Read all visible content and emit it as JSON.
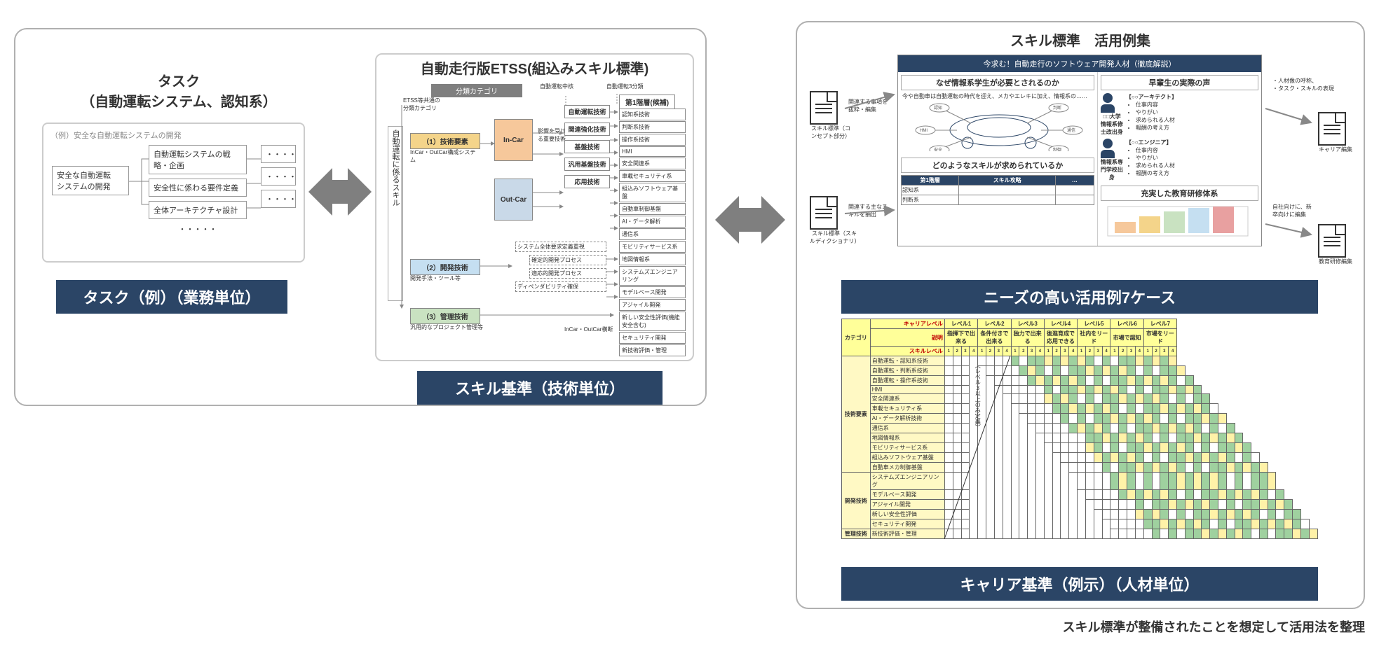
{
  "colors": {
    "banner_bg": "#2b4566",
    "banner_fg": "#ffffff",
    "panel_border": "#b0b0b0",
    "arrow": "#7f7f7f",
    "cat_yellow": "#f4d48a",
    "cat_blue": "#c5dff1",
    "cat_green": "#c9e2c1",
    "incar": "#f6c89b",
    "outcar": "#c9d9e8",
    "matrix_header": "#ffff99",
    "matrix_green": "#9fd19f",
    "matrix_yellow": "#fff2a8",
    "red_text": "#c00000"
  },
  "left": {
    "task_heading_line1": "タスク",
    "task_heading_line2": "（自動運転システム、認知系）",
    "example_label": "（例）安全な自動運転システムの開発",
    "root_box_line1": "安全な自動運転",
    "root_box_line2": "システムの開発",
    "child_boxes": [
      "自動運転システムの戦略・企画",
      "安全性に係わる要件定義",
      "全体アーキテクチャ設計",
      "・・・・・"
    ],
    "dots": "・・・・",
    "banner": "タスク（例）（業務単位）"
  },
  "center": {
    "heading": "自動走行版ETSS(組込みスキル標準)",
    "col_category": "分類カテゴリ",
    "col_tier1": "第1階層(候補)",
    "etss_note": "ETSS等共通の分類カテゴリ",
    "vert_label": "自動運転に係るスキル",
    "cats": {
      "c1": "（1）技術要素",
      "c1_sub": "InCar・OutCar構成システム",
      "c2": "（2）開発技術",
      "c2_sub": "開発手法・ツール等",
      "c3": "（3）管理技術",
      "c3_sub": "汎用的なプロジェクト管理等"
    },
    "incar": "In-Car",
    "outcar": "Out-Car",
    "center_note": "自動運転中核",
    "center_boxes": [
      "自動運転技術",
      "関連強化技術",
      "基盤技術",
      "汎用基盤技術",
      "応用技術"
    ],
    "impact_note": "影響を受ける重要技術",
    "three_note": "自動運転3分類",
    "dev_boxes": [
      "システム全体要求定義重視",
      "確定的開発プロセス",
      "適応的開発プロセス",
      "ディペンダビリティ確保"
    ],
    "tier1_items": [
      "認知系技術",
      "判断系技術",
      "操作系技術",
      "HMI",
      "安全関連系",
      "車載セキュリティ系",
      "組込みソフトウェア基盤",
      "自動車制御基盤",
      "AI・データ解析",
      "通信系",
      "モビリティサービス系",
      "地図情報系",
      "システムズエンジニアリング",
      "モデルベース開発",
      "アジャイル開発",
      "新しい安全性評価(機能安全含む)",
      "セキュリティ開発",
      "新技術評価・管理"
    ],
    "footer_note": "InCar・OutCar横断",
    "banner": "スキル基準（技術単位）"
  },
  "right": {
    "heading": "スキル標準　活用例集",
    "doc_title": "今求む！自動走行のソフトウェア開発人材（徹底解説）",
    "sec_a": "なぜ情報系学生が必要とされるのか",
    "sec_a_body": "今や自動車は自動運転の時代を迎え、メカやエレキに加え、情報系の……",
    "sec_b": "早輩生の実際の声",
    "sec_c": "どのようなスキルが求められているか",
    "sec_d": "充実した教育研修体系",
    "role1": "【○○アーキテクト】",
    "role2": "【○○エンジニア】",
    "role_bullets": [
      "仕事内容",
      "やりがい",
      "求められる人材",
      "報酬の考え方"
    ],
    "school1": "□□大学 情報系修士改出身",
    "school2": "情報系専門学校出身",
    "sec_c_table_head": [
      "第1階層",
      "スキル攻略",
      "…"
    ],
    "sec_c_rows": [
      "認知系",
      "判断系"
    ],
    "sec_c_note": "関連する主なスキルを抽出",
    "left_doc1_label": "スキル標準（コンセプト部分）",
    "left_doc1_arrow": "関連する事項を抜粋・編集",
    "left_doc2_label": "スキル標準（スキルディクショナリ）",
    "right_note1a": "人材像の呼称、",
    "right_note1b": "タスク・スキルの表現",
    "right_doc1_label": "キャリア編集",
    "right_note2a": "自社向けに、新",
    "right_note2b": "卒向けに編集",
    "right_doc2_label": "教育研修編集",
    "banner1": "ニーズの高い活用例7ケース",
    "matrix": {
      "corner": "カテゴリ",
      "career_label": "キャリアレベル",
      "desc_label": "説明",
      "skill_label": "スキルレベル",
      "levels": [
        "レベル1",
        "レベル2",
        "レベル3",
        "レベル4",
        "レベル5",
        "レベル6",
        "レベル7"
      ],
      "level_desc": [
        "指揮下で出来る",
        "条件付きで出来る",
        "独力で出来る",
        "後進育成で応用できる",
        "社内をリード",
        "市場で認知",
        "市場をリード"
      ],
      "sub_cols_per_level": 4,
      "row_groups": [
        {
          "name": "技術要素",
          "rows": [
            "自動運転・認知系技術",
            "自動運転・判断系技術",
            "自動運転・操作系技術",
            "HMI",
            "安全関連系",
            "車載セキュリティ系",
            "AI・データ解析技術",
            "通信系",
            "地図情報系",
            "モビリティサービス系",
            "組込みソフトウェア基盤",
            "自動車メカ制御基盤"
          ]
        },
        {
          "name": "開発技術",
          "rows": [
            "システムズエンジニアリング",
            "モデルベース開発",
            "アジャイル開発",
            "新しい安全性評価",
            "セキュリティ開発"
          ]
        },
        {
          "name": "管理技術",
          "rows": [
            "新技術評価・管理"
          ]
        }
      ],
      "diag_note": "（レベル３以上のみ定義）"
    },
    "banner2": "キャリア基準（例示）（人材単位）",
    "footer": "スキル標準が整備されたことを想定して活用法を整理"
  }
}
